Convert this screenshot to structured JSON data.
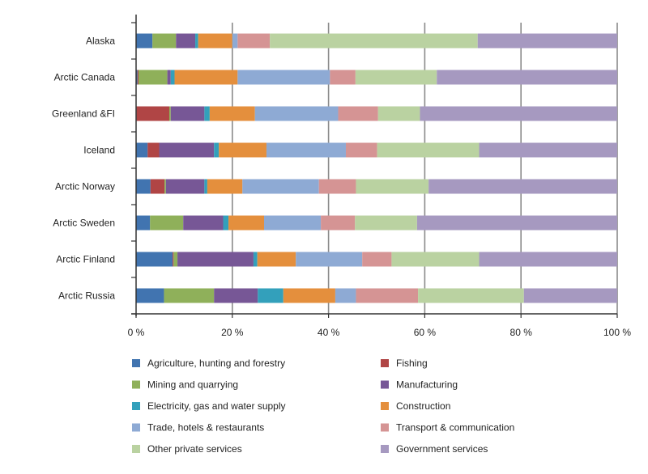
{
  "chart_data": {
    "type": "bar",
    "orientation": "horizontal",
    "stacked": "percent",
    "categories": [
      "Alaska",
      "Arctic Canada",
      "Greenland &FI",
      "Iceland",
      "Arctic Norway",
      "Arctic Sweden",
      "Arctic Finland",
      "Arctic Russia"
    ],
    "series": [
      {
        "name": "Agriculture, hunting and forestry",
        "color": "#4174b0",
        "values": [
          3.4,
          0.3,
          0.1,
          2.4,
          3.0,
          2.9,
          7.6,
          5.8
        ]
      },
      {
        "name": "Fishing",
        "color": "#b04545",
        "values": [
          0,
          0.2,
          6.8,
          2.4,
          2.9,
          0,
          0.2,
          0
        ]
      },
      {
        "name": "Mining and quarrying",
        "color": "#8fb05a",
        "values": [
          4.9,
          6.0,
          0.3,
          0,
          0.3,
          6.9,
          0.8,
          10.4
        ]
      },
      {
        "name": "Manufacturing",
        "color": "#775796",
        "values": [
          4.0,
          0.7,
          7.0,
          11.4,
          8.0,
          8.3,
          15.8,
          9.1
        ]
      },
      {
        "name": "Electricity, gas and water supply",
        "color": "#33a0bb",
        "values": [
          0.6,
          0.8,
          1.1,
          1.0,
          0.6,
          1.1,
          0.8,
          5.3
        ]
      },
      {
        "name": "Construction",
        "color": "#e48f3d",
        "values": [
          7.1,
          13.1,
          9.4,
          9.9,
          7.3,
          7.4,
          8.0,
          10.8
        ]
      },
      {
        "name": "Trade, hotels & restaurants",
        "color": "#8eaad4",
        "values": [
          1.1,
          19.2,
          17.3,
          16.5,
          15.9,
          11.8,
          13.8,
          4.3
        ]
      },
      {
        "name": "Transport & communication",
        "color": "#d59494",
        "values": [
          6.7,
          5.3,
          8.3,
          6.5,
          7.7,
          7.1,
          6.1,
          12.9
        ]
      },
      {
        "name": "Other private services",
        "color": "#bad2a1",
        "values": [
          43.2,
          16.9,
          8.7,
          21.2,
          15.1,
          12.9,
          18.2,
          22.0
        ]
      },
      {
        "name": "Government services",
        "color": "#a699c0",
        "values": [
          29.0,
          37.5,
          41.0,
          28.7,
          39.2,
          41.6,
          28.7,
          19.4
        ]
      }
    ],
    "xlim": [
      0,
      100
    ],
    "x_ticks": [
      "0 %",
      "20 %",
      "40 %",
      "60 %",
      "80 %",
      "100 %"
    ],
    "grid": "vertical",
    "legend": "bottom"
  }
}
